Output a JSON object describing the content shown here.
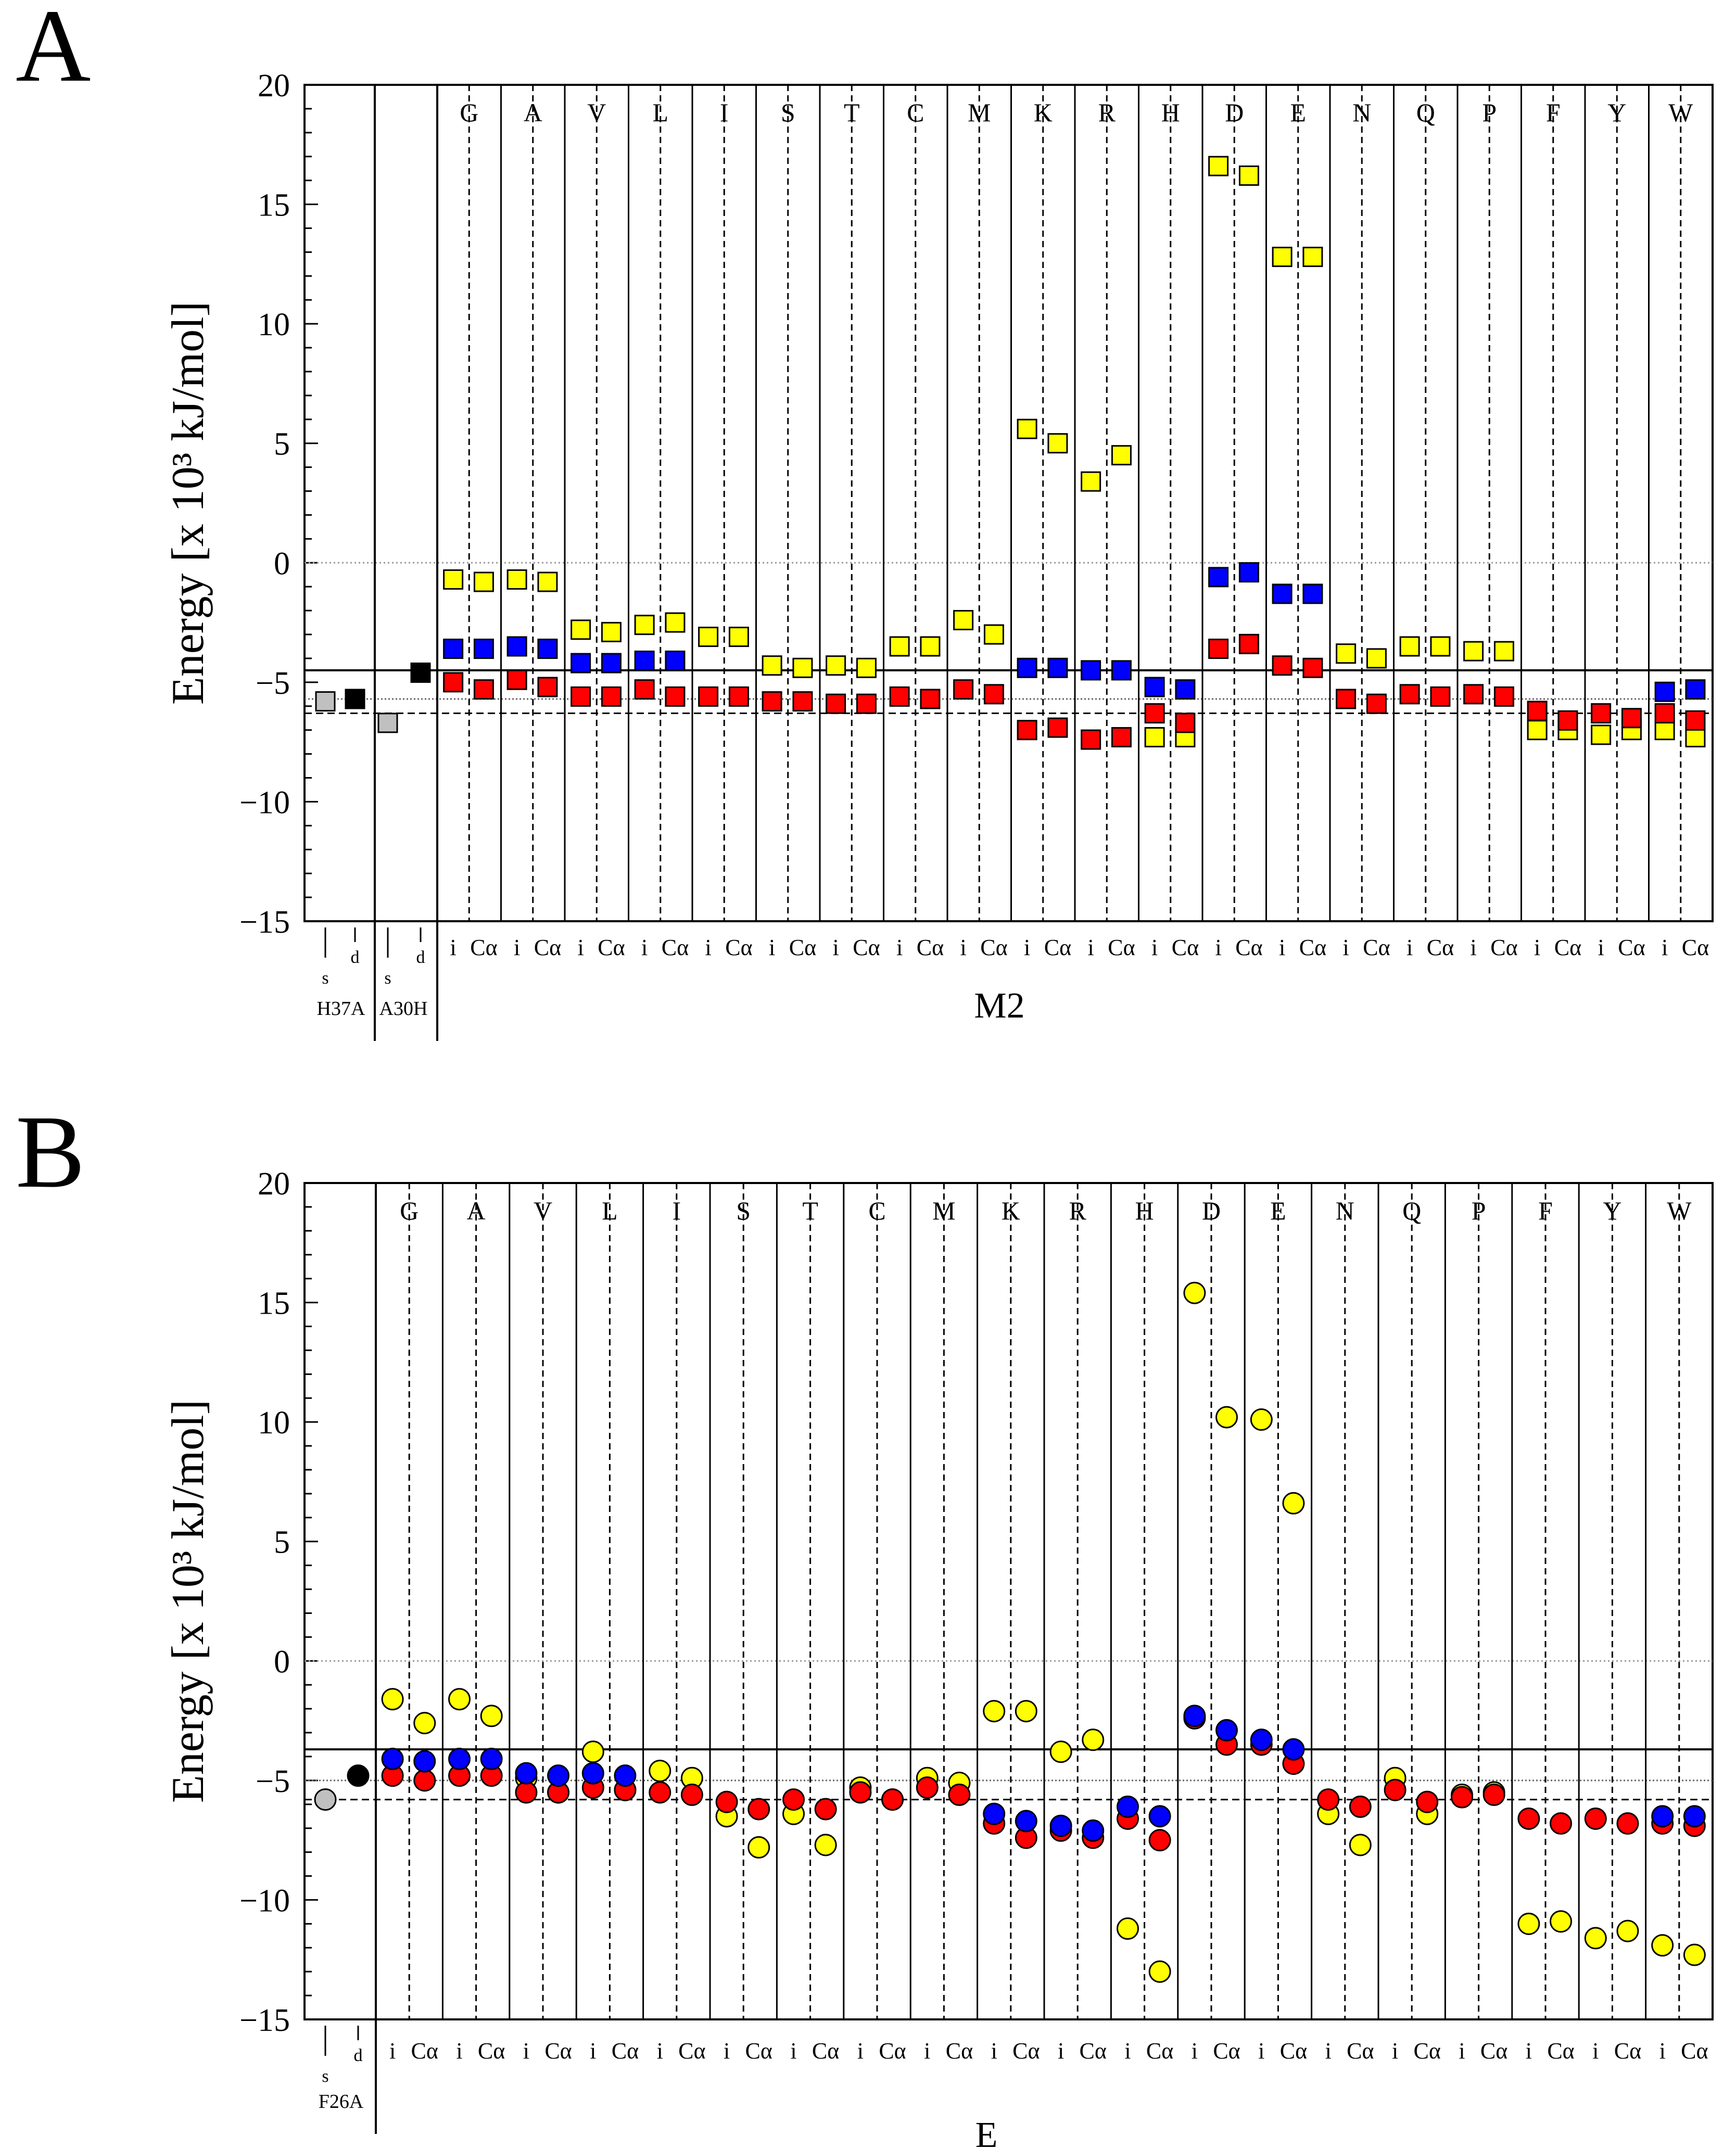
{
  "panels": [
    {
      "label": "A",
      "ylabel": "Energy [x 10³ kJ/mol]",
      "ylim": [
        -15,
        20
      ],
      "yticks": [
        "20",
        "15",
        "10",
        "5",
        "0",
        "−5",
        "−10",
        "−15"
      ],
      "xlabel": "M2",
      "residues": [
        "G",
        "A",
        "V",
        "L",
        "I",
        "S",
        "T",
        "C",
        "M",
        "K",
        "R",
        "H",
        "D",
        "E",
        "N",
        "Q",
        "P",
        "F",
        "Y",
        "W"
      ],
      "sublabels": [
        "i",
        "Cα"
      ],
      "ref_labels": [
        {
          "name": "H37A",
          "cols": [
            "s",
            "d"
          ]
        },
        {
          "name": "A30H",
          "cols": [
            "s",
            "d"
          ]
        }
      ]
    },
    {
      "label": "B",
      "ylabel": "Energy [x 10³ kJ/mol]",
      "ylim": [
        -15,
        20
      ],
      "yticks": [
        "20",
        "15",
        "10",
        "5",
        "0",
        "−5",
        "−10",
        "−15"
      ],
      "xlabel": "E",
      "residues": [
        "G",
        "A",
        "V",
        "L",
        "I",
        "S",
        "T",
        "C",
        "M",
        "K",
        "R",
        "H",
        "D",
        "E",
        "N",
        "Q",
        "P",
        "F",
        "Y",
        "W"
      ],
      "sublabels": [
        "i",
        "Cα"
      ],
      "ref_labels": [
        {
          "name": "F26A",
          "cols": [
            "s",
            "d"
          ]
        }
      ]
    }
  ],
  "colors": {
    "yellow": "#ffff00",
    "blue": "#0000ff",
    "red": "#ff0000",
    "gray": "#c0c0c0",
    "black": "#000000"
  },
  "chart_data": [
    {
      "type": "scatter",
      "title": "A",
      "xlabel": "M2",
      "ylabel": "Energy [x 10³ kJ/mol]",
      "ylim": [
        -15,
        20
      ],
      "marker": "square",
      "reference_lines": {
        "solid": -4.5,
        "dotted": -5.7,
        "dashed": -6.3,
        "zero": 0
      },
      "reference_points": [
        {
          "group": "H37A",
          "col": "s",
          "value": -5.8,
          "color": "gray"
        },
        {
          "group": "H37A",
          "col": "d",
          "value": -5.7,
          "color": "black"
        },
        {
          "group": "A30H",
          "col": "s",
          "value": -6.7,
          "color": "gray"
        },
        {
          "group": "A30H",
          "col": "d",
          "value": -4.6,
          "color": "black"
        }
      ],
      "categories": [
        "G i",
        "G Cα",
        "A i",
        "A Cα",
        "V i",
        "V Cα",
        "L i",
        "L Cα",
        "I i",
        "I Cα",
        "S i",
        "S Cα",
        "T i",
        "T Cα",
        "C i",
        "C Cα",
        "M i",
        "M Cα",
        "K i",
        "K Cα",
        "R i",
        "R Cα",
        "H i",
        "H Cα",
        "D i",
        "D Cα",
        "E i",
        "E Cα",
        "N i",
        "N Cα",
        "Q i",
        "Q Cα",
        "P i",
        "P Cα",
        "F i",
        "F Cα",
        "Y i",
        "Y Cα",
        "W i",
        "W Cα"
      ],
      "series": [
        {
          "name": "yellow",
          "values": [
            -0.7,
            -0.8,
            -0.7,
            -0.8,
            -2.8,
            -2.9,
            -2.6,
            -2.5,
            -3.1,
            -3.1,
            -4.3,
            -4.4,
            -4.3,
            -4.4,
            -3.5,
            -3.5,
            -2.4,
            -3.0,
            5.6,
            5.0,
            3.4,
            4.5,
            -7.3,
            -7.3,
            16.6,
            16.2,
            12.8,
            12.8,
            -3.8,
            -4.0,
            -3.5,
            -3.5,
            -3.7,
            -3.7,
            -7.0,
            -7.0,
            -7.2,
            -7.0,
            -7.0,
            -7.3
          ]
        },
        {
          "name": "blue",
          "values": [
            -3.6,
            -3.6,
            -3.5,
            -3.6,
            -4.2,
            -4.2,
            -4.1,
            -4.1,
            null,
            null,
            null,
            null,
            null,
            null,
            null,
            null,
            null,
            null,
            -4.4,
            -4.4,
            -4.5,
            -4.5,
            -5.2,
            -5.3,
            -0.6,
            -0.4,
            -1.3,
            -1.3,
            null,
            null,
            null,
            null,
            null,
            null,
            null,
            null,
            null,
            null,
            -5.4,
            -5.3
          ]
        },
        {
          "name": "red",
          "values": [
            -5.0,
            -5.3,
            -4.9,
            -5.2,
            -5.6,
            -5.6,
            -5.3,
            -5.6,
            -5.6,
            -5.6,
            -5.8,
            -5.8,
            -5.9,
            -5.9,
            -5.6,
            -5.7,
            -5.3,
            -5.5,
            -7.0,
            -6.9,
            -7.4,
            -7.3,
            -6.3,
            -6.7,
            -3.6,
            -3.4,
            -4.3,
            -4.4,
            -5.7,
            -5.9,
            -5.5,
            -5.6,
            -5.5,
            -5.6,
            -6.2,
            -6.6,
            -6.3,
            -6.5,
            -6.3,
            -6.6
          ]
        }
      ]
    },
    {
      "type": "scatter",
      "title": "B",
      "xlabel": "E",
      "ylabel": "Energy [x 10³ kJ/mol]",
      "ylim": [
        -15,
        20
      ],
      "marker": "circle",
      "reference_lines": {
        "solid": -3.7,
        "dotted": -5.0,
        "dashed": -5.8,
        "zero": 0
      },
      "reference_points": [
        {
          "group": "F26A",
          "col": "s",
          "value": -5.8,
          "color": "gray"
        },
        {
          "group": "F26A",
          "col": "d",
          "value": -4.8,
          "color": "black"
        }
      ],
      "categories": [
        "G i",
        "G Cα",
        "A i",
        "A Cα",
        "V i",
        "V Cα",
        "L i",
        "L Cα",
        "I i",
        "I Cα",
        "S i",
        "S Cα",
        "T i",
        "T Cα",
        "C i",
        "C Cα",
        "M i",
        "M Cα",
        "K i",
        "K Cα",
        "R i",
        "R Cα",
        "H i",
        "H Cα",
        "D i",
        "D Cα",
        "E i",
        "E Cα",
        "N i",
        "N Cα",
        "Q i",
        "Q Cα",
        "P i",
        "P Cα",
        "F i",
        "F Cα",
        "Y i",
        "Y Cα",
        "W i",
        "W Cα"
      ],
      "series": [
        {
          "name": "yellow",
          "values": [
            -1.6,
            -2.6,
            -1.6,
            -2.3,
            -4.9,
            -5.5,
            -3.8,
            -5.4,
            -4.6,
            -4.9,
            -6.5,
            -7.8,
            -6.4,
            -7.7,
            -5.3,
            -5.8,
            -4.9,
            -5.1,
            -2.1,
            -2.1,
            -3.8,
            -3.3,
            -11.2,
            -13.0,
            15.4,
            10.2,
            10.1,
            6.6,
            -6.4,
            -7.7,
            -4.9,
            -6.4,
            -5.6,
            -5.5,
            -11.0,
            -10.9,
            -11.6,
            -11.3,
            -11.9,
            -12.3
          ]
        },
        {
          "name": "blue",
          "values": [
            -4.1,
            -4.2,
            -4.1,
            -4.1,
            -4.7,
            -4.8,
            -4.7,
            -4.8,
            null,
            null,
            null,
            null,
            null,
            null,
            null,
            null,
            null,
            null,
            -6.4,
            -6.7,
            -6.9,
            -7.1,
            -6.1,
            -6.5,
            -2.3,
            -2.9,
            -3.3,
            -3.7,
            null,
            null,
            null,
            null,
            null,
            null,
            null,
            null,
            null,
            null,
            -6.5,
            -6.5
          ]
        },
        {
          "name": "red",
          "values": [
            -4.8,
            -5.0,
            -4.8,
            -4.8,
            -5.5,
            -5.5,
            -5.3,
            -5.4,
            -5.5,
            -5.6,
            -5.9,
            -6.2,
            -5.8,
            -6.2,
            -5.5,
            -5.8,
            -5.3,
            -5.6,
            -6.8,
            -7.4,
            -7.1,
            -7.4,
            -6.6,
            -7.5,
            -2.4,
            -3.5,
            -3.5,
            -4.3,
            -5.8,
            -6.1,
            -5.4,
            -5.9,
            -5.7,
            -5.6,
            -6.6,
            -6.8,
            -6.6,
            -6.8,
            -6.8,
            -6.9
          ]
        }
      ]
    }
  ]
}
